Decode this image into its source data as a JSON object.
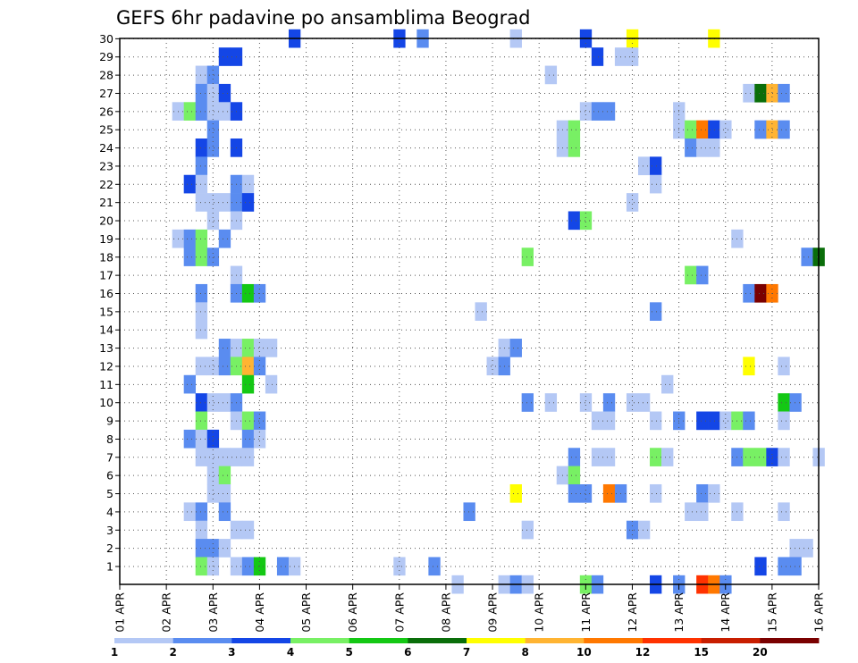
{
  "chart_data": {
    "type": "heatmap",
    "title": "GEFS 6hr padavine po ansamblima Beograd",
    "xlabel": "",
    "ylabel": "",
    "x_ticks": [
      "01 APR",
      "02 APR",
      "03 APR",
      "04 APR",
      "05 APR",
      "06 APR",
      "07 APR",
      "08 APR",
      "09 APR",
      "10 APR",
      "11 APR",
      "12 APR",
      "13 APR",
      "14 APR",
      "15 APR",
      "16 APR"
    ],
    "y_ticks": [
      "1",
      "2",
      "3",
      "4",
      "5",
      "6",
      "7",
      "8",
      "9",
      "10",
      "11",
      "12",
      "13",
      "14",
      "15",
      "16",
      "17",
      "18",
      "19",
      "20",
      "21",
      "22",
      "23",
      "24",
      "25",
      "26",
      "27",
      "28",
      "29",
      "30"
    ],
    "x_steps": 60,
    "y_members": 30,
    "grid": true,
    "legend": {
      "position": "bottom",
      "labels": [
        "1",
        "2",
        "3",
        "4",
        "5",
        "6",
        "7",
        "8",
        "10",
        "12",
        "15",
        "20"
      ],
      "colors": [
        "#b4c8f5",
        "#5a8cf0",
        "#1446e6",
        "#78f064",
        "#14c814",
        "#0a6e0a",
        "#ffff00",
        "#ffb432",
        "#ff7800",
        "#ff3200",
        "#c81e00",
        "#7a0000"
      ]
    },
    "cells": [
      [
        30,
        15,
        2
      ],
      [
        30,
        24,
        2
      ],
      [
        30,
        26,
        1
      ],
      [
        30,
        34,
        0
      ],
      [
        30,
        40,
        2
      ],
      [
        30,
        44,
        6
      ],
      [
        30,
        51,
        6
      ],
      [
        29,
        9,
        2
      ],
      [
        29,
        10,
        2
      ],
      [
        29,
        41,
        2
      ],
      [
        29,
        43,
        0
      ],
      [
        29,
        44,
        0
      ],
      [
        28,
        7,
        0
      ],
      [
        28,
        8,
        1
      ],
      [
        28,
        37,
        0
      ],
      [
        27,
        7,
        1
      ],
      [
        27,
        8,
        0
      ],
      [
        27,
        9,
        2
      ],
      [
        27,
        54,
        0
      ],
      [
        27,
        55,
        5
      ],
      [
        27,
        56,
        7
      ],
      [
        27,
        57,
        1
      ],
      [
        26,
        5,
        0
      ],
      [
        26,
        6,
        3
      ],
      [
        26,
        7,
        1
      ],
      [
        26,
        8,
        0
      ],
      [
        26,
        9,
        0
      ],
      [
        26,
        10,
        2
      ],
      [
        26,
        40,
        0
      ],
      [
        26,
        41,
        1
      ],
      [
        26,
        42,
        1
      ],
      [
        26,
        48,
        0
      ],
      [
        25,
        8,
        1
      ],
      [
        25,
        38,
        0
      ],
      [
        25,
        39,
        3
      ],
      [
        25,
        48,
        0
      ],
      [
        25,
        49,
        3
      ],
      [
        25,
        50,
        8
      ],
      [
        25,
        51,
        2
      ],
      [
        25,
        52,
        0
      ],
      [
        25,
        55,
        1
      ],
      [
        25,
        56,
        7
      ],
      [
        25,
        57,
        1
      ],
      [
        24,
        7,
        2
      ],
      [
        24,
        8,
        1
      ],
      [
        24,
        10,
        2
      ],
      [
        24,
        38,
        0
      ],
      [
        24,
        39,
        3
      ],
      [
        24,
        49,
        1
      ],
      [
        24,
        50,
        0
      ],
      [
        24,
        51,
        0
      ],
      [
        23,
        7,
        1
      ],
      [
        23,
        45,
        0
      ],
      [
        23,
        46,
        2
      ],
      [
        22,
        6,
        2
      ],
      [
        22,
        7,
        0
      ],
      [
        22,
        10,
        1
      ],
      [
        22,
        11,
        0
      ],
      [
        22,
        46,
        0
      ],
      [
        21,
        7,
        0
      ],
      [
        21,
        8,
        0
      ],
      [
        21,
        9,
        0
      ],
      [
        21,
        10,
        1
      ],
      [
        21,
        11,
        2
      ],
      [
        21,
        44,
        0
      ],
      [
        20,
        8,
        0
      ],
      [
        20,
        10,
        0
      ],
      [
        20,
        39,
        2
      ],
      [
        20,
        40,
        3
      ],
      [
        19,
        5,
        0
      ],
      [
        19,
        6,
        1
      ],
      [
        19,
        7,
        3
      ],
      [
        19,
        9,
        1
      ],
      [
        19,
        53,
        0
      ],
      [
        18,
        6,
        1
      ],
      [
        18,
        7,
        3
      ],
      [
        18,
        8,
        1
      ],
      [
        18,
        35,
        3
      ],
      [
        18,
        59,
        1
      ],
      [
        18,
        60,
        5
      ],
      [
        17,
        10,
        0
      ],
      [
        17,
        49,
        3
      ],
      [
        17,
        50,
        1
      ],
      [
        16,
        7,
        1
      ],
      [
        16,
        10,
        1
      ],
      [
        16,
        11,
        4
      ],
      [
        16,
        12,
        1
      ],
      [
        16,
        54,
        1
      ],
      [
        16,
        55,
        11
      ],
      [
        16,
        56,
        8
      ],
      [
        15,
        7,
        0
      ],
      [
        15,
        31,
        0
      ],
      [
        15,
        46,
        1
      ],
      [
        14,
        7,
        0
      ],
      [
        13,
        9,
        1
      ],
      [
        13,
        10,
        0
      ],
      [
        13,
        11,
        3
      ],
      [
        13,
        12,
        0
      ],
      [
        13,
        13,
        0
      ],
      [
        13,
        33,
        0
      ],
      [
        13,
        34,
        1
      ],
      [
        12,
        7,
        0
      ],
      [
        12,
        8,
        0
      ],
      [
        12,
        9,
        1
      ],
      [
        12,
        10,
        3
      ],
      [
        12,
        11,
        7
      ],
      [
        12,
        12,
        1
      ],
      [
        12,
        32,
        0
      ],
      [
        12,
        33,
        1
      ],
      [
        12,
        54,
        6
      ],
      [
        12,
        57,
        0
      ],
      [
        11,
        6,
        1
      ],
      [
        11,
        11,
        4
      ],
      [
        11,
        13,
        0
      ],
      [
        11,
        47,
        0
      ],
      [
        10,
        7,
        2
      ],
      [
        10,
        8,
        0
      ],
      [
        10,
        9,
        0
      ],
      [
        10,
        10,
        1
      ],
      [
        10,
        35,
        1
      ],
      [
        10,
        37,
        0
      ],
      [
        10,
        40,
        0
      ],
      [
        10,
        42,
        1
      ],
      [
        10,
        44,
        0
      ],
      [
        10,
        45,
        0
      ],
      [
        10,
        57,
        4
      ],
      [
        10,
        58,
        1
      ],
      [
        9,
        7,
        3
      ],
      [
        9,
        10,
        0
      ],
      [
        9,
        11,
        3
      ],
      [
        9,
        12,
        1
      ],
      [
        9,
        41,
        0
      ],
      [
        9,
        42,
        0
      ],
      [
        9,
        46,
        0
      ],
      [
        9,
        48,
        1
      ],
      [
        9,
        50,
        2
      ],
      [
        9,
        51,
        2
      ],
      [
        9,
        52,
        0
      ],
      [
        9,
        53,
        3
      ],
      [
        9,
        54,
        1
      ],
      [
        9,
        57,
        0
      ],
      [
        8,
        6,
        1
      ],
      [
        8,
        7,
        0
      ],
      [
        8,
        8,
        2
      ],
      [
        8,
        11,
        1
      ],
      [
        8,
        12,
        0
      ],
      [
        7,
        7,
        0
      ],
      [
        7,
        8,
        0
      ],
      [
        7,
        9,
        0
      ],
      [
        7,
        10,
        0
      ],
      [
        7,
        11,
        0
      ],
      [
        7,
        39,
        1
      ],
      [
        7,
        41,
        0
      ],
      [
        7,
        42,
        0
      ],
      [
        7,
        46,
        3
      ],
      [
        7,
        47,
        0
      ],
      [
        7,
        53,
        1
      ],
      [
        7,
        54,
        3
      ],
      [
        7,
        55,
        3
      ],
      [
        7,
        56,
        2
      ],
      [
        7,
        57,
        0
      ],
      [
        7,
        60,
        0
      ],
      [
        6,
        8,
        0
      ],
      [
        6,
        9,
        3
      ],
      [
        6,
        38,
        0
      ],
      [
        6,
        39,
        3
      ],
      [
        5,
        8,
        0
      ],
      [
        5,
        9,
        0
      ],
      [
        5,
        34,
        6
      ],
      [
        5,
        39,
        1
      ],
      [
        5,
        40,
        1
      ],
      [
        5,
        42,
        8
      ],
      [
        5,
        43,
        1
      ],
      [
        5,
        46,
        0
      ],
      [
        5,
        50,
        1
      ],
      [
        5,
        51,
        0
      ],
      [
        4,
        6,
        0
      ],
      [
        4,
        7,
        1
      ],
      [
        4,
        9,
        1
      ],
      [
        4,
        30,
        1
      ],
      [
        4,
        49,
        0
      ],
      [
        4,
        50,
        0
      ],
      [
        4,
        53,
        0
      ],
      [
        4,
        57,
        0
      ],
      [
        3,
        7,
        0
      ],
      [
        3,
        10,
        0
      ],
      [
        3,
        11,
        0
      ],
      [
        3,
        35,
        0
      ],
      [
        3,
        44,
        1
      ],
      [
        3,
        45,
        0
      ],
      [
        2,
        7,
        1
      ],
      [
        2,
        8,
        1
      ],
      [
        2,
        9,
        0
      ],
      [
        2,
        58,
        0
      ],
      [
        2,
        59,
        0
      ],
      [
        1,
        7,
        3
      ],
      [
        1,
        8,
        0
      ],
      [
        1,
        10,
        0
      ],
      [
        1,
        11,
        1
      ],
      [
        1,
        12,
        4
      ],
      [
        1,
        14,
        1
      ],
      [
        1,
        15,
        0
      ],
      [
        1,
        24,
        0
      ],
      [
        1,
        27,
        1
      ],
      [
        1,
        55,
        2
      ],
      [
        1,
        57,
        1
      ],
      [
        1,
        58,
        1
      ],
      [
        0,
        29,
        0
      ],
      [
        0,
        33,
        0
      ],
      [
        0,
        34,
        1
      ],
      [
        0,
        35,
        0
      ],
      [
        0,
        40,
        3
      ],
      [
        0,
        41,
        1
      ],
      [
        0,
        46,
        2
      ],
      [
        0,
        48,
        1
      ],
      [
        0,
        50,
        9
      ],
      [
        0,
        51,
        8
      ],
      [
        0,
        52,
        1
      ]
    ]
  }
}
